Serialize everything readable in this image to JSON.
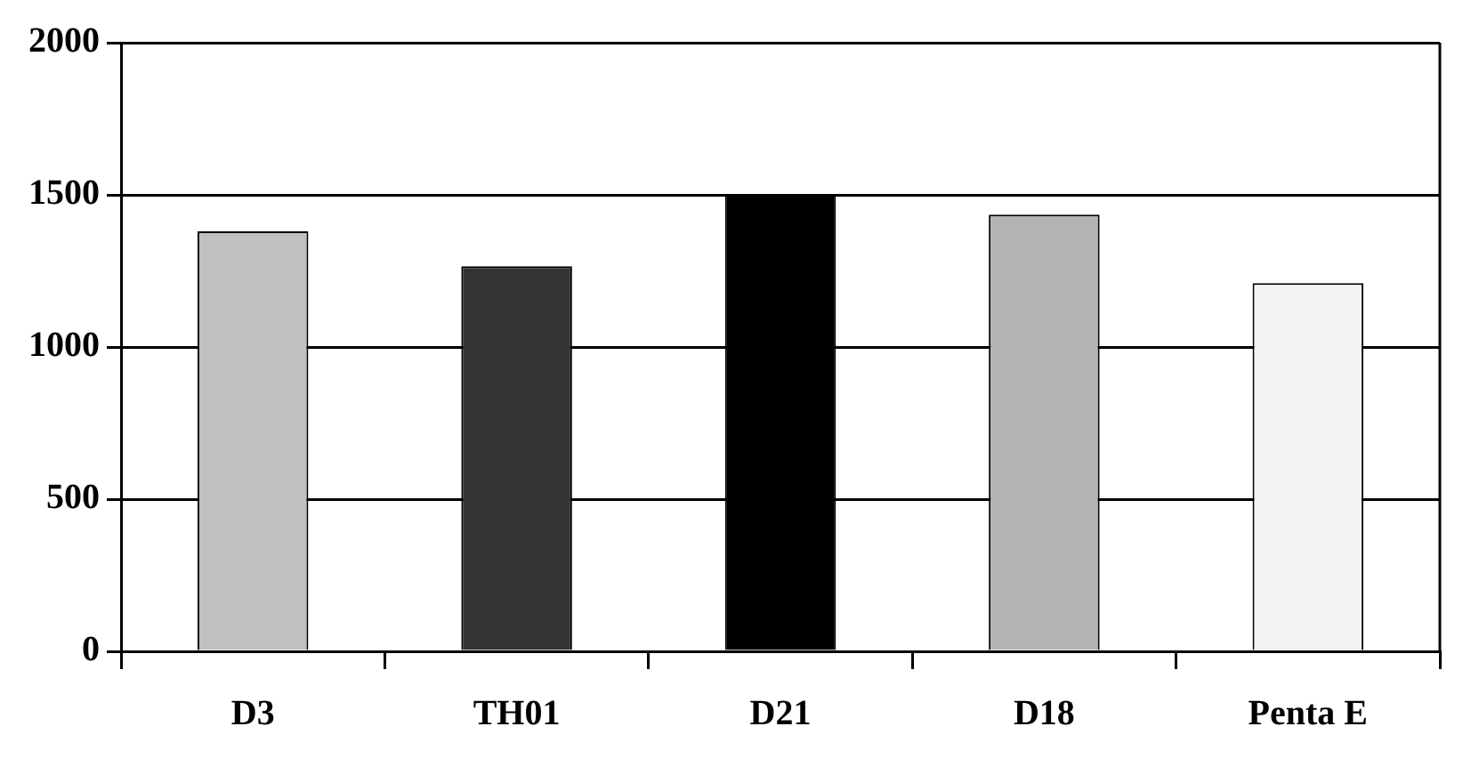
{
  "chart_data": {
    "type": "bar",
    "categories": [
      "D3",
      "TH01",
      "D21",
      "D18",
      "Penta E"
    ],
    "values": [
      1380,
      1265,
      1500,
      1435,
      1210
    ],
    "colors": [
      "#c0c0c0",
      "#333333",
      "#000000",
      "#b3b3b3",
      "#f2f2f2"
    ],
    "ylim": [
      0,
      2000
    ],
    "yticks": [
      0,
      500,
      1000,
      1500,
      2000
    ],
    "grid": "y",
    "legend": false
  }
}
